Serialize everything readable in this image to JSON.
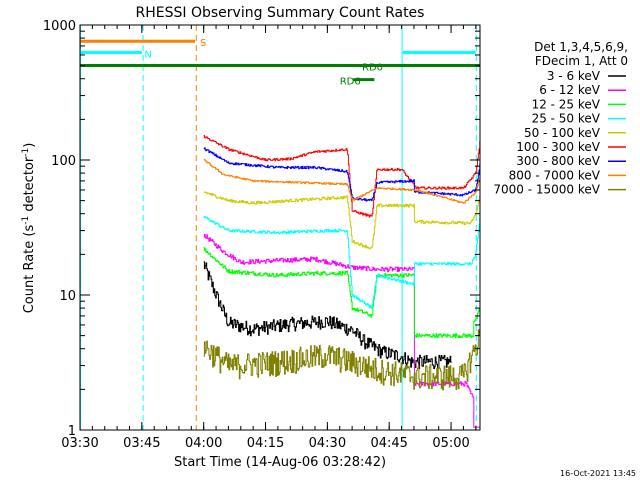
{
  "chart_data": {
    "type": "line",
    "title": "RHESSI Observing Summary Count Rates",
    "xlabel": "Start Time (14-Aug-06 03:28:42)",
    "ylabel_prefix": "Count Rate (s",
    "ylabel_sup1": "-1",
    "ylabel_mid": " detector",
    "ylabel_sup2": "-1",
    "ylabel_suffix": ")",
    "y_scale": "log",
    "ylim": [
      1,
      1000
    ],
    "xlim": [
      3.5,
      5.117
    ],
    "x_ticks": [
      {
        "v": 3.5,
        "label": "03:30"
      },
      {
        "v": 3.75,
        "label": "03:45"
      },
      {
        "v": 4.0,
        "label": "04:00"
      },
      {
        "v": 4.25,
        "label": "04:15"
      },
      {
        "v": 4.5,
        "label": "04:30"
      },
      {
        "v": 4.75,
        "label": "04:45"
      },
      {
        "v": 5.0,
        "label": "05:00"
      }
    ],
    "y_ticks": [
      {
        "v": 1,
        "label": "1"
      },
      {
        "v": 10,
        "label": "10"
      },
      {
        "v": 100,
        "label": "100"
      },
      {
        "v": 1000,
        "label": "1000"
      }
    ],
    "legend_header": [
      "Det 1,3,4,5,6,9,",
      "FDecim 1, Att 0"
    ],
    "series": [
      {
        "name": "3 - 6 keV",
        "color": "#000000",
        "start": 4.0,
        "end": 5.0,
        "noise": 0.12,
        "points": [
          [
            4.0,
            17
          ],
          [
            4.05,
            10
          ],
          [
            4.1,
            6.2
          ],
          [
            4.2,
            5.6
          ],
          [
            4.35,
            6.1
          ],
          [
            4.5,
            6.4
          ],
          [
            4.6,
            5.5
          ],
          [
            4.65,
            4.5
          ],
          [
            4.72,
            3.8
          ],
          [
            4.8,
            3.5
          ],
          [
            4.84,
            3.2
          ]
        ]
      },
      {
        "name": "6 - 12 keV",
        "color": "#ff00ff",
        "start": 4.0,
        "end": 5.117,
        "noise": 0.04,
        "points": [
          [
            4.0,
            28
          ],
          [
            4.08,
            21
          ],
          [
            4.15,
            17.5
          ],
          [
            4.3,
            18
          ],
          [
            4.45,
            18.5
          ],
          [
            4.6,
            16
          ],
          [
            4.7,
            15.5
          ],
          [
            4.85,
            15.5
          ],
          [
            4.86,
            2.2
          ],
          [
            5.06,
            2.2
          ],
          [
            5.09,
            1.7
          ],
          [
            5.1,
            1.0
          ]
        ]
      },
      {
        "name": "12 - 25 keV",
        "color": "#00ff00",
        "start": 4.0,
        "end": 5.117,
        "noise": 0.035,
        "points": [
          [
            4.0,
            22
          ],
          [
            4.1,
            15
          ],
          [
            4.3,
            14
          ],
          [
            4.45,
            14.5
          ],
          [
            4.58,
            14.5
          ],
          [
            4.6,
            8
          ],
          [
            4.68,
            7
          ],
          [
            4.7,
            14
          ],
          [
            4.85,
            14
          ],
          [
            4.86,
            5
          ],
          [
            5.09,
            5
          ],
          [
            5.1,
            6.5
          ],
          [
            5.117,
            8
          ]
        ]
      },
      {
        "name": "25 - 50 keV",
        "color": "#00ffff",
        "start": 4.0,
        "end": 5.117,
        "noise": 0.025,
        "points": [
          [
            4.0,
            38
          ],
          [
            4.1,
            30
          ],
          [
            4.3,
            29
          ],
          [
            4.5,
            30
          ],
          [
            4.58,
            30
          ],
          [
            4.6,
            10
          ],
          [
            4.68,
            8
          ],
          [
            4.7,
            14
          ],
          [
            4.85,
            12
          ],
          [
            4.86,
            17
          ],
          [
            5.08,
            17
          ],
          [
            5.1,
            20
          ],
          [
            5.117,
            38
          ]
        ]
      },
      {
        "name": "50 - 100 keV",
        "color": "#cccc00",
        "start": 4.0,
        "end": 5.117,
        "noise": 0.025,
        "points": [
          [
            4.0,
            58
          ],
          [
            4.1,
            50
          ],
          [
            4.2,
            48
          ],
          [
            4.35,
            50
          ],
          [
            4.5,
            52
          ],
          [
            4.58,
            53
          ],
          [
            4.6,
            25
          ],
          [
            4.68,
            22
          ],
          [
            4.7,
            46
          ],
          [
            4.85,
            46
          ],
          [
            4.86,
            35
          ],
          [
            5.08,
            34
          ],
          [
            5.1,
            40
          ],
          [
            5.117,
            55
          ]
        ]
      },
      {
        "name": "100 - 300 keV",
        "color": "#ff0000",
        "start": 4.0,
        "end": 5.117,
        "noise": 0.02,
        "points": [
          [
            4.0,
            150
          ],
          [
            4.1,
            120
          ],
          [
            4.25,
            100
          ],
          [
            4.35,
            102
          ],
          [
            4.45,
            115
          ],
          [
            4.58,
            120
          ],
          [
            4.6,
            42
          ],
          [
            4.68,
            38
          ],
          [
            4.7,
            85
          ],
          [
            4.8,
            85
          ],
          [
            4.86,
            62
          ],
          [
            5.05,
            62
          ],
          [
            5.1,
            80
          ],
          [
            5.117,
            140
          ]
        ]
      },
      {
        "name": "300 - 800 keV",
        "color": "#0000ff",
        "start": 4.0,
        "end": 5.117,
        "noise": 0.02,
        "points": [
          [
            4.0,
            122
          ],
          [
            4.1,
            95
          ],
          [
            4.3,
            88
          ],
          [
            4.45,
            88
          ],
          [
            4.58,
            82
          ],
          [
            4.6,
            52
          ],
          [
            4.68,
            50
          ],
          [
            4.7,
            68
          ],
          [
            4.85,
            70
          ],
          [
            4.86,
            58
          ],
          [
            5.05,
            55
          ],
          [
            5.1,
            60
          ],
          [
            5.117,
            95
          ]
        ]
      },
      {
        "name": "800 - 7000 keV",
        "color": "#ff8000",
        "start": 4.0,
        "end": 5.117,
        "noise": 0.015,
        "points": [
          [
            4.0,
            100
          ],
          [
            4.08,
            78
          ],
          [
            4.2,
            70
          ],
          [
            4.4,
            68
          ],
          [
            4.58,
            66
          ],
          [
            4.6,
            50
          ],
          [
            4.7,
            62
          ],
          [
            4.86,
            60
          ],
          [
            5.05,
            48
          ],
          [
            5.1,
            58
          ],
          [
            5.117,
            75
          ]
        ]
      },
      {
        "name": "7000 - 15000 keV",
        "color": "#808000",
        "start": 4.0,
        "end": 5.117,
        "noise": 0.22,
        "points": [
          [
            4.0,
            4.2
          ],
          [
            4.1,
            3.0
          ],
          [
            4.3,
            3.2
          ],
          [
            4.5,
            3.6
          ],
          [
            4.7,
            2.8
          ],
          [
            4.86,
            2.5
          ],
          [
            5.05,
            2.5
          ],
          [
            5.117,
            5
          ]
        ]
      }
    ],
    "bars": [
      {
        "label": "S",
        "color": "#ff8000",
        "y_frac": 0.04,
        "x0": 3.5,
        "x1": 3.965,
        "label_x": 3.985
      },
      {
        "label": "N",
        "color": "#00ffff",
        "y_frac": 0.068,
        "x0": 3.5,
        "x1": 3.75,
        "label_x": 3.76
      },
      {
        "label": "N",
        "color": "#00ffff",
        "y_frac": 0.068,
        "x0": 4.805,
        "x1": 5.1,
        "label_x": null
      },
      {
        "label": "RD0",
        "color": "#008000",
        "y_frac": 0.1,
        "x0": 3.5,
        "x1": 5.117,
        "label_x": 4.64
      },
      {
        "label": "RD6",
        "color": "#008000",
        "y_frac": 0.135,
        "x0": 4.605,
        "x1": 4.69,
        "label_x": 4.55
      }
    ],
    "vlines": [
      {
        "x": 3.502,
        "color": "#00ffff",
        "style": "solid"
      },
      {
        "x": 3.755,
        "color": "#00ffff",
        "style": "dashed"
      },
      {
        "x": 3.97,
        "color": "#ff8000",
        "style": "dashed"
      },
      {
        "x": 4.802,
        "color": "#00ffff",
        "style": "solid"
      },
      {
        "x": 5.102,
        "color": "#00ffff",
        "style": "dashed"
      }
    ],
    "footer_text": "16-Oct-2021 13:45"
  }
}
